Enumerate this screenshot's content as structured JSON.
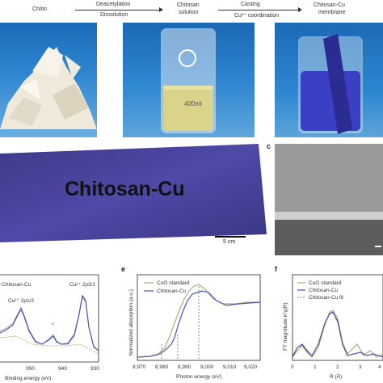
{
  "flow": {
    "chitin": "Chitin",
    "deacetylation": "Deacetylation",
    "dissolution": "Dissolution",
    "chitosan_solution_1": "Chitosan",
    "chitosan_solution_2": "solution",
    "casting": "Casting",
    "coordination": "Cu²⁺ coordination",
    "membrane_1": "Chitosan-Cu",
    "membrane_2": "membrane"
  },
  "beaker_label": "400ml",
  "membrane_text": "Chitosan-Cu",
  "scale_bar": "5 cm",
  "panel_labels": {
    "c": "c",
    "e": "e",
    "f": "f"
  },
  "panel_d": {
    "legend": "-Chitosan-Cu",
    "peak1": "Cu²⁺ 2p1/2",
    "peak2": "Cu²⁺ 2p3/2",
    "star": "*",
    "xlabel": "Binding energy (eV)",
    "xticks": [
      "950",
      "940",
      "930"
    ]
  },
  "panel_e": {
    "ylabel": "Normalized absorption (a.u.)",
    "xlabel": "Photon energy (eV)",
    "xticks": [
      "8,970",
      "8,980",
      "8,990",
      "9,000",
      "9,010",
      "9,020"
    ],
    "legend": [
      "CuO standard",
      "Chitosan-Cu"
    ]
  },
  "panel_f": {
    "ylabel": "FT magnitude k²χ(R)",
    "xlabel": "R (Å)",
    "xticks": [
      "0",
      "1",
      "2",
      "3",
      "4"
    ],
    "legend": [
      "CuO standard",
      "Chitosan-Cu",
      "Chitosan-Cu fit"
    ]
  },
  "colors": {
    "blue": "#4a56b8",
    "olive": "#b3ad72",
    "dark": "#555555"
  }
}
